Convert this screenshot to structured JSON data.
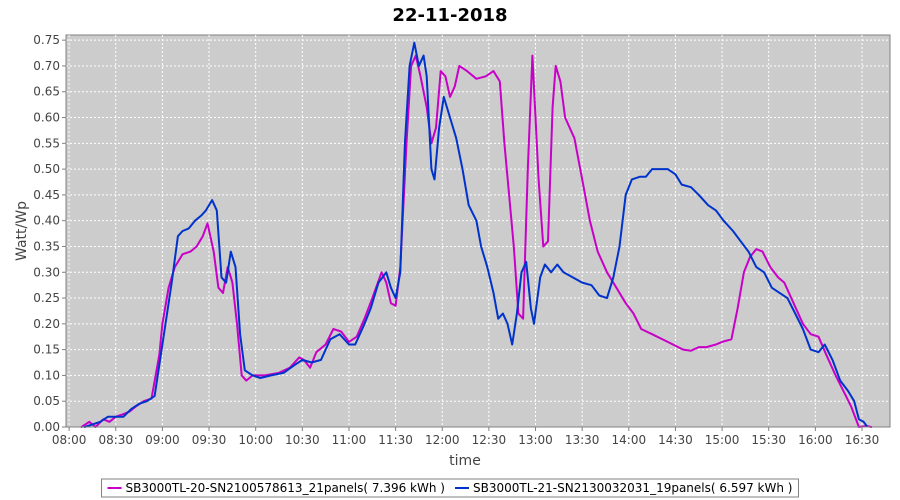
{
  "chart_data": {
    "type": "line",
    "title": "22-11-2018",
    "xlabel": "time",
    "ylabel": "Watt/Wp",
    "xlim": [
      "07:58",
      "16:48"
    ],
    "ylim": [
      0,
      0.76
    ],
    "grid": true,
    "legend_position": "bottom",
    "x_ticks": [
      "08:00",
      "08:30",
      "09:00",
      "09:30",
      "10:00",
      "10:30",
      "11:00",
      "11:30",
      "12:00",
      "12:30",
      "13:00",
      "13:30",
      "14:00",
      "14:30",
      "15:00",
      "15:30",
      "16:00",
      "16:30"
    ],
    "y_ticks": [
      "0.00",
      "0.05",
      "0.10",
      "0.15",
      "0.20",
      "0.25",
      "0.30",
      "0.35",
      "0.40",
      "0.45",
      "0.50",
      "0.55",
      "0.60",
      "0.65",
      "0.70",
      "0.75"
    ],
    "series": [
      {
        "name": "SB3000TL-20-SN2100578613_21panels( 7.396 kWh )",
        "color": "#c800c8",
        "points": [
          [
            "08:08",
            0.0
          ],
          [
            "08:13",
            0.01
          ],
          [
            "08:17",
            0.0
          ],
          [
            "08:22",
            0.015
          ],
          [
            "08:26",
            0.01
          ],
          [
            "08:30",
            0.02
          ],
          [
            "08:35",
            0.025
          ],
          [
            "08:39",
            0.03
          ],
          [
            "08:43",
            0.04
          ],
          [
            "08:48",
            0.05
          ],
          [
            "08:53",
            0.055
          ],
          [
            "08:58",
            0.14
          ],
          [
            "09:00",
            0.2
          ],
          [
            "09:04",
            0.27
          ],
          [
            "09:08",
            0.31
          ],
          [
            "09:13",
            0.335
          ],
          [
            "09:18",
            0.34
          ],
          [
            "09:22",
            0.35
          ],
          [
            "09:26",
            0.37
          ],
          [
            "09:29",
            0.395
          ],
          [
            "09:33",
            0.34
          ],
          [
            "09:36",
            0.27
          ],
          [
            "09:39",
            0.26
          ],
          [
            "09:42",
            0.31
          ],
          [
            "09:45",
            0.28
          ],
          [
            "09:48",
            0.2
          ],
          [
            "09:51",
            0.1
          ],
          [
            "09:54",
            0.09
          ],
          [
            "09:58",
            0.1
          ],
          [
            "10:06",
            0.1
          ],
          [
            "10:15",
            0.105
          ],
          [
            "10:22",
            0.115
          ],
          [
            "10:28",
            0.135
          ],
          [
            "10:31",
            0.13
          ],
          [
            "10:35",
            0.115
          ],
          [
            "10:39",
            0.145
          ],
          [
            "10:45",
            0.16
          ],
          [
            "10:50",
            0.19
          ],
          [
            "10:55",
            0.185
          ],
          [
            "11:00",
            0.165
          ],
          [
            "11:05",
            0.175
          ],
          [
            "11:10",
            0.21
          ],
          [
            "11:15",
            0.25
          ],
          [
            "11:21",
            0.3
          ],
          [
            "11:24",
            0.28
          ],
          [
            "11:27",
            0.24
          ],
          [
            "11:30",
            0.235
          ],
          [
            "11:33",
            0.31
          ],
          [
            "11:37",
            0.55
          ],
          [
            "11:40",
            0.7
          ],
          [
            "11:43",
            0.72
          ],
          [
            "11:46",
            0.68
          ],
          [
            "11:50",
            0.62
          ],
          [
            "11:53",
            0.55
          ],
          [
            "11:56",
            0.58
          ],
          [
            "11:59",
            0.69
          ],
          [
            "12:02",
            0.68
          ],
          [
            "12:05",
            0.64
          ],
          [
            "12:08",
            0.66
          ],
          [
            "12:11",
            0.7
          ],
          [
            "12:16",
            0.69
          ],
          [
            "12:22",
            0.675
          ],
          [
            "12:28",
            0.68
          ],
          [
            "12:33",
            0.69
          ],
          [
            "12:37",
            0.67
          ],
          [
            "12:40",
            0.55
          ],
          [
            "12:43",
            0.45
          ],
          [
            "12:46",
            0.35
          ],
          [
            "12:49",
            0.22
          ],
          [
            "12:52",
            0.21
          ],
          [
            "12:55",
            0.5
          ],
          [
            "12:58",
            0.72
          ],
          [
            "13:00",
            0.6
          ],
          [
            "13:02",
            0.48
          ],
          [
            "13:05",
            0.35
          ],
          [
            "13:08",
            0.36
          ],
          [
            "13:11",
            0.62
          ],
          [
            "13:13",
            0.7
          ],
          [
            "13:16",
            0.67
          ],
          [
            "13:19",
            0.6
          ],
          [
            "13:25",
            0.56
          ],
          [
            "13:30",
            0.48
          ],
          [
            "13:35",
            0.4
          ],
          [
            "13:40",
            0.34
          ],
          [
            "13:46",
            0.3
          ],
          [
            "13:52",
            0.27
          ],
          [
            "13:58",
            0.24
          ],
          [
            "14:03",
            0.22
          ],
          [
            "14:08",
            0.19
          ],
          [
            "14:15",
            0.18
          ],
          [
            "14:25",
            0.165
          ],
          [
            "14:35",
            0.15
          ],
          [
            "14:40",
            0.148
          ],
          [
            "14:45",
            0.155
          ],
          [
            "14:50",
            0.155
          ],
          [
            "14:56",
            0.16
          ],
          [
            "15:00",
            0.165
          ],
          [
            "15:06",
            0.17
          ],
          [
            "15:10",
            0.23
          ],
          [
            "15:14",
            0.3
          ],
          [
            "15:18",
            0.33
          ],
          [
            "15:22",
            0.345
          ],
          [
            "15:26",
            0.34
          ],
          [
            "15:31",
            0.31
          ],
          [
            "15:36",
            0.29
          ],
          [
            "15:40",
            0.28
          ],
          [
            "15:46",
            0.24
          ],
          [
            "15:52",
            0.2
          ],
          [
            "15:57",
            0.18
          ],
          [
            "16:02",
            0.175
          ],
          [
            "16:07",
            0.14
          ],
          [
            "16:13",
            0.1
          ],
          [
            "16:18",
            0.07
          ],
          [
            "16:23",
            0.04
          ],
          [
            "16:28",
            0.0
          ],
          [
            "16:33",
            0.002
          ],
          [
            "16:36",
            0.0
          ]
        ]
      },
      {
        "name": "SB3000TL-21-SN2130032031_19panels( 6.597 kWh )",
        "color": "#0033cc",
        "points": [
          [
            "08:10",
            0.0
          ],
          [
            "08:15",
            0.005
          ],
          [
            "08:20",
            0.01
          ],
          [
            "08:25",
            0.02
          ],
          [
            "08:30",
            0.02
          ],
          [
            "08:35",
            0.02
          ],
          [
            "08:40",
            0.035
          ],
          [
            "08:45",
            0.045
          ],
          [
            "08:50",
            0.05
          ],
          [
            "08:55",
            0.06
          ],
          [
            "08:58",
            0.12
          ],
          [
            "09:02",
            0.2
          ],
          [
            "09:06",
            0.28
          ],
          [
            "09:10",
            0.37
          ],
          [
            "09:13",
            0.38
          ],
          [
            "09:17",
            0.385
          ],
          [
            "09:21",
            0.4
          ],
          [
            "09:25",
            0.41
          ],
          [
            "09:28",
            0.42
          ],
          [
            "09:32",
            0.44
          ],
          [
            "09:35",
            0.42
          ],
          [
            "09:38",
            0.29
          ],
          [
            "09:41",
            0.28
          ],
          [
            "09:44",
            0.34
          ],
          [
            "09:47",
            0.31
          ],
          [
            "09:50",
            0.18
          ],
          [
            "09:53",
            0.11
          ],
          [
            "09:58",
            0.1
          ],
          [
            "10:03",
            0.095
          ],
          [
            "10:10",
            0.1
          ],
          [
            "10:18",
            0.105
          ],
          [
            "10:25",
            0.12
          ],
          [
            "10:30",
            0.13
          ],
          [
            "10:36",
            0.125
          ],
          [
            "10:42",
            0.13
          ],
          [
            "10:48",
            0.17
          ],
          [
            "10:54",
            0.18
          ],
          [
            "11:00",
            0.16
          ],
          [
            "11:04",
            0.16
          ],
          [
            "11:10",
            0.2
          ],
          [
            "11:14",
            0.23
          ],
          [
            "11:19",
            0.28
          ],
          [
            "11:24",
            0.3
          ],
          [
            "11:27",
            0.27
          ],
          [
            "11:30",
            0.25
          ],
          [
            "11:33",
            0.3
          ],
          [
            "11:36",
            0.55
          ],
          [
            "11:39",
            0.7
          ],
          [
            "11:42",
            0.745
          ],
          [
            "11:45",
            0.7
          ],
          [
            "11:48",
            0.72
          ],
          [
            "11:50",
            0.68
          ],
          [
            "11:53",
            0.5
          ],
          [
            "11:55",
            0.48
          ],
          [
            "11:58",
            0.58
          ],
          [
            "12:01",
            0.64
          ],
          [
            "12:05",
            0.6
          ],
          [
            "12:09",
            0.56
          ],
          [
            "12:13",
            0.5
          ],
          [
            "12:17",
            0.43
          ],
          [
            "12:22",
            0.4
          ],
          [
            "12:25",
            0.35
          ],
          [
            "12:29",
            0.31
          ],
          [
            "12:33",
            0.26
          ],
          [
            "12:36",
            0.21
          ],
          [
            "12:39",
            0.22
          ],
          [
            "12:42",
            0.2
          ],
          [
            "12:45",
            0.16
          ],
          [
            "12:48",
            0.22
          ],
          [
            "12:51",
            0.3
          ],
          [
            "12:54",
            0.32
          ],
          [
            "12:57",
            0.23
          ],
          [
            "12:59",
            0.2
          ],
          [
            "13:03",
            0.29
          ],
          [
            "13:06",
            0.315
          ],
          [
            "13:10",
            0.3
          ],
          [
            "13:14",
            0.315
          ],
          [
            "13:18",
            0.3
          ],
          [
            "13:24",
            0.29
          ],
          [
            "13:30",
            0.28
          ],
          [
            "13:36",
            0.275
          ],
          [
            "13:41",
            0.255
          ],
          [
            "13:46",
            0.25
          ],
          [
            "13:50",
            0.29
          ],
          [
            "13:54",
            0.35
          ],
          [
            "13:58",
            0.45
          ],
          [
            "14:02",
            0.48
          ],
          [
            "14:07",
            0.485
          ],
          [
            "14:11",
            0.485
          ],
          [
            "14:15",
            0.5
          ],
          [
            "14:20",
            0.5
          ],
          [
            "14:25",
            0.5
          ],
          [
            "14:30",
            0.49
          ],
          [
            "14:34",
            0.47
          ],
          [
            "14:40",
            0.465
          ],
          [
            "14:45",
            0.45
          ],
          [
            "14:51",
            0.43
          ],
          [
            "14:56",
            0.42
          ],
          [
            "15:01",
            0.4
          ],
          [
            "15:07",
            0.38
          ],
          [
            "15:12",
            0.36
          ],
          [
            "15:17",
            0.34
          ],
          [
            "15:22",
            0.31
          ],
          [
            "15:27",
            0.3
          ],
          [
            "15:32",
            0.27
          ],
          [
            "15:37",
            0.26
          ],
          [
            "15:42",
            0.25
          ],
          [
            "15:47",
            0.22
          ],
          [
            "15:52",
            0.19
          ],
          [
            "15:57",
            0.15
          ],
          [
            "16:02",
            0.145
          ],
          [
            "16:06",
            0.16
          ],
          [
            "16:11",
            0.13
          ],
          [
            "16:16",
            0.09
          ],
          [
            "16:21",
            0.07
          ],
          [
            "16:25",
            0.05
          ],
          [
            "16:28",
            0.015
          ],
          [
            "16:31",
            0.01
          ],
          [
            "16:33",
            0.002
          ]
        ]
      }
    ]
  }
}
